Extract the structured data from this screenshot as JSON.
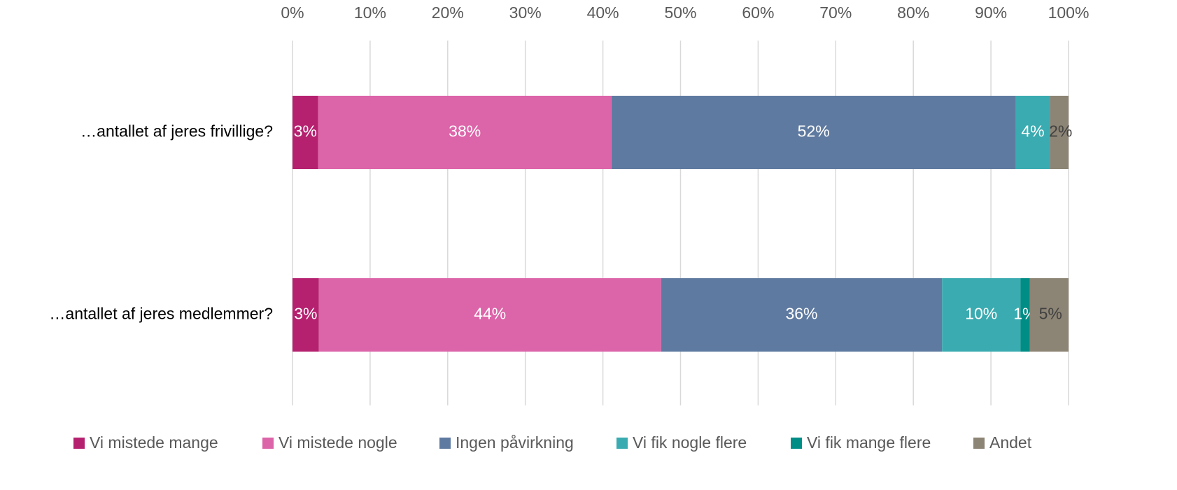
{
  "chart_data": {
    "type": "stacked_barh",
    "categories": [
      "…antallet af jeres frivillige?",
      "…antallet af jeres medlemmer?"
    ],
    "series": [
      {
        "name": "Vi mistede mange",
        "color": "#b5216f",
        "values": [
          3.3,
          3.4
        ],
        "value_labels": [
          "3%",
          "3%"
        ]
      },
      {
        "name": "Vi mistede nogle",
        "color": "#dc64a8",
        "values": [
          37.8,
          44.1
        ],
        "value_labels": [
          "38%",
          "44%"
        ]
      },
      {
        "name": "Ingen påvirkning",
        "color": "#5f7aa0",
        "values": [
          52.1,
          36.2
        ],
        "value_labels": [
          "52%",
          "36%"
        ]
      },
      {
        "name": "Vi fik nogle flere",
        "color": "#3aabb0",
        "values": [
          4.4,
          10.1
        ],
        "value_labels": [
          "4%",
          "10%"
        ]
      },
      {
        "name": "Vi fik mange flere",
        "color": "#008d86",
        "values": [
          0,
          1.2
        ],
        "value_labels": [
          null,
          "1%"
        ]
      },
      {
        "name": "Andet",
        "color": "#8c8475",
        "values": [
          2.4,
          5.0
        ],
        "value_labels": [
          "2%",
          "5%"
        ]
      }
    ],
    "xlim": [
      0,
      100
    ],
    "xticks": [
      {
        "value": 0,
        "label": "0%"
      },
      {
        "value": 10,
        "label": "10%"
      },
      {
        "value": 20,
        "label": "20%"
      },
      {
        "value": 30,
        "label": "30%"
      },
      {
        "value": 40,
        "label": "40%"
      },
      {
        "value": 50,
        "label": "50%"
      },
      {
        "value": 60,
        "label": "60%"
      },
      {
        "value": 70,
        "label": "70%"
      },
      {
        "value": 80,
        "label": "80%"
      },
      {
        "value": 90,
        "label": "90%"
      },
      {
        "value": 100,
        "label": "100%"
      }
    ],
    "grid": true,
    "legend": "bottom"
  }
}
